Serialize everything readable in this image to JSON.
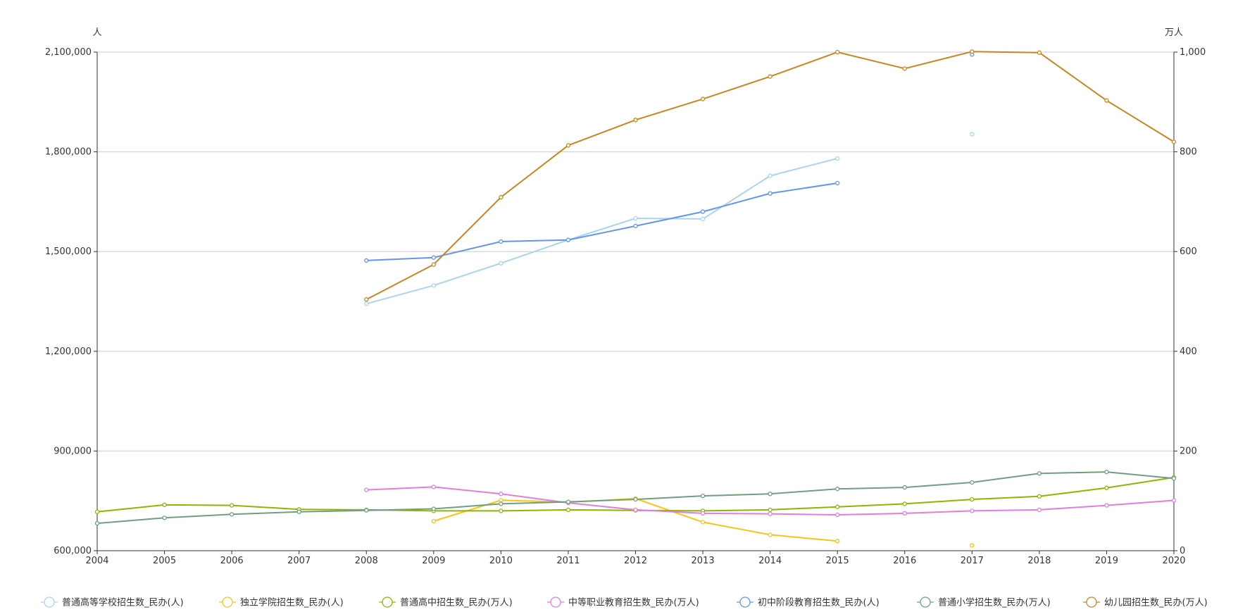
{
  "chart_data": {
    "type": "line",
    "x": [
      2004,
      2005,
      2006,
      2007,
      2008,
      2009,
      2010,
      2011,
      2012,
      2013,
      2014,
      2015,
      2016,
      2017,
      2018,
      2019,
      2020
    ],
    "y_left": {
      "unit": "人",
      "range": [
        600000,
        2100000
      ],
      "ticks": [
        600000,
        900000,
        1200000,
        1500000,
        1800000,
        2100000
      ],
      "tick_labels": [
        "600,000",
        "900,000",
        "1,200,000",
        "1,500,000",
        "1,800,000",
        "2,100,000"
      ]
    },
    "y_right": {
      "unit": "万人",
      "range": [
        0,
        1000
      ],
      "ticks": [
        0,
        200,
        400,
        600,
        800,
        1000
      ],
      "tick_labels": [
        "0",
        "200",
        "400",
        "600",
        "800",
        "1,000"
      ]
    },
    "grid": true,
    "legend_position": "bottom",
    "series": [
      {
        "name": "普通高等学校招生数_民办(人)",
        "axis": "left",
        "color": "#a8d4f4",
        "values": [
          null,
          null,
          null,
          null,
          1343000,
          1398000,
          1465000,
          1535000,
          1600000,
          1598000,
          1728000,
          1780000,
          null,
          1853000,
          null,
          null,
          null
        ]
      },
      {
        "name": "独立学院招生数_民办(人)",
        "axis": "left",
        "color": "#f5c518",
        "values": [
          null,
          null,
          null,
          null,
          null,
          689000,
          752000,
          746000,
          757000,
          686000,
          648000,
          629000,
          null,
          616000,
          null,
          null,
          null
        ]
      },
      {
        "name": "普通高中招生数_民办(万人)",
        "axis": "right",
        "color": "#8db600",
        "values": [
          78,
          92,
          91,
          83,
          82,
          80,
          80,
          82,
          81,
          80,
          82,
          88,
          94,
          103,
          109,
          126,
          147
        ]
      },
      {
        "name": "中等职业教育招生数_民办(万人)",
        "axis": "right",
        "color": "#e07ee0",
        "values": [
          null,
          null,
          null,
          null,
          122,
          128,
          114,
          96,
          82,
          75,
          74,
          72,
          75,
          80,
          82,
          91,
          101
        ]
      },
      {
        "name": "初中阶段教育招生数_民办(人)",
        "axis": "left",
        "color": "#6495ed",
        "values": [
          null,
          null,
          null,
          null,
          1473000,
          1482000,
          1530000,
          1535000,
          1577000,
          1620000,
          1675000,
          1706000,
          null,
          2093000,
          null,
          null,
          null
        ]
      },
      {
        "name": "普通小学招生数_民办(万人)",
        "axis": "right",
        "color": "#6f9f7f",
        "values": [
          55,
          66,
          73,
          78,
          81,
          84,
          94,
          98,
          103,
          110,
          114,
          124,
          127,
          137,
          155,
          158,
          145
        ]
      },
      {
        "name": "幼儿园招生数_民办(万人)",
        "axis": "right",
        "color": "#c8861e",
        "values": [
          null,
          null,
          null,
          null,
          504,
          574,
          709,
          813,
          864,
          906,
          951,
          1000,
          967,
          1001,
          999,
          903,
          820
        ]
      }
    ]
  }
}
